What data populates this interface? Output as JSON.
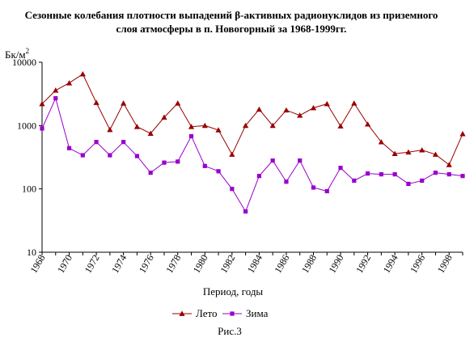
{
  "chart_data": {
    "type": "line",
    "title_line1": "Сезонные колебания плотности выпадений β-активных радионуклидов из приземного",
    "title_line2": "слоя атмосферы в п. Новогорный за 1968-1999гг.",
    "ylabel": "Бк/м",
    "ylabel_sup": "2",
    "xlabel": "Период, годы",
    "caption": "Рис.3",
    "yscale": "log",
    "ylim": [
      10,
      10000
    ],
    "y_ticks": [
      "10",
      "100",
      "1000",
      "10000"
    ],
    "x_tick_labels": [
      "1968",
      "1970",
      "1972",
      "1974",
      "1976",
      "1978",
      "1980",
      "1982",
      "1984",
      "1986",
      "1988",
      "1990",
      "1992",
      "1994",
      "1996",
      "1998"
    ],
    "x": [
      1968,
      1969,
      1970,
      1971,
      1972,
      1973,
      1974,
      1975,
      1976,
      1977,
      1978,
      1979,
      1980,
      1981,
      1982,
      1983,
      1984,
      1985,
      1986,
      1987,
      1988,
      1989,
      1990,
      1991,
      1992,
      1993,
      1994,
      1995,
      1996,
      1997,
      1998,
      1999
    ],
    "series": [
      {
        "name": "Лето",
        "color": "#990000",
        "marker": "triangle",
        "values": [
          2200,
          3600,
          4700,
          6500,
          2300,
          860,
          2250,
          960,
          750,
          1350,
          2250,
          960,
          1000,
          850,
          350,
          1000,
          1800,
          1000,
          1750,
          1450,
          1900,
          2200,
          980,
          2250,
          1050,
          550,
          360,
          380,
          410,
          350,
          240,
          740
        ]
      },
      {
        "name": "Зима",
        "color": "#9900cc",
        "marker": "square",
        "values": [
          900,
          2700,
          440,
          340,
          550,
          340,
          550,
          330,
          180,
          260,
          270,
          680,
          230,
          190,
          100,
          44,
          160,
          280,
          130,
          280,
          105,
          92,
          215,
          135,
          175,
          170,
          170,
          120,
          135,
          180,
          170,
          160
        ]
      }
    ],
    "legend_position": "bottom"
  }
}
